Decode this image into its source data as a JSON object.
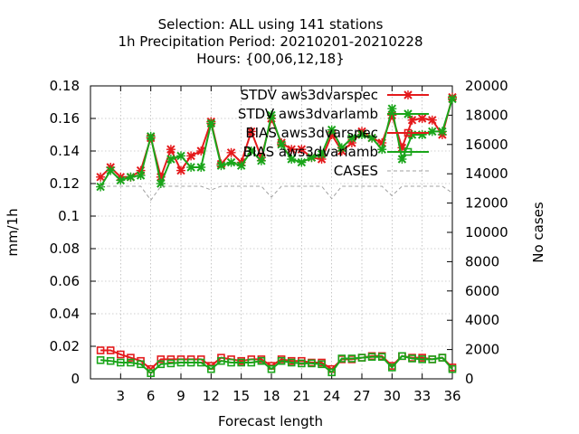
{
  "chart_data": {
    "type": "line",
    "title_lines": [
      "Selection: ALL using   141 stations",
      "1h Precipitation   Period: 20210201-20210228",
      "Hours: {00,06,12,18}"
    ],
    "xlabel": "Forecast length",
    "ylabel": "mm/1h",
    "y2label": "No cases",
    "xlim": [
      0,
      36
    ],
    "ylim": [
      0,
      0.18
    ],
    "y2lim": [
      0,
      20000
    ],
    "grid": true,
    "legend_position": "top-right",
    "x_ticks": [
      3,
      6,
      9,
      12,
      15,
      18,
      21,
      24,
      27,
      30,
      33,
      36
    ],
    "y_ticks": [
      0,
      0.02,
      0.04,
      0.06,
      0.08,
      0.1,
      0.12,
      0.14,
      0.16,
      0.18
    ],
    "y_tick_labels": [
      "0",
      "0.02",
      "0.04",
      "0.06",
      "0.08",
      "0.1",
      "0.12",
      "0.14",
      "0.16",
      "0.18"
    ],
    "y2_ticks": [
      0,
      2000,
      4000,
      6000,
      8000,
      10000,
      12000,
      14000,
      16000,
      18000,
      20000
    ],
    "x": [
      1,
      2,
      3,
      4,
      5,
      6,
      7,
      8,
      9,
      10,
      11,
      12,
      13,
      14,
      15,
      16,
      17,
      18,
      19,
      20,
      21,
      22,
      23,
      24,
      25,
      26,
      27,
      28,
      29,
      30,
      31,
      32,
      33,
      34,
      35,
      36
    ],
    "series": [
      {
        "name": "STDV aws3dvarspec",
        "color": "#e41a1c",
        "marker": "x",
        "axis": "y",
        "values": [
          0.124,
          0.13,
          0.124,
          0.124,
          0.128,
          0.148,
          0.124,
          0.141,
          0.128,
          0.137,
          0.14,
          0.158,
          0.132,
          0.139,
          0.133,
          0.152,
          0.136,
          0.16,
          0.145,
          0.141,
          0.141,
          0.136,
          0.135,
          0.15,
          0.14,
          0.145,
          0.152,
          0.148,
          0.145,
          0.162,
          0.142,
          0.159,
          0.16,
          0.159,
          0.15,
          0.173
        ]
      },
      {
        "name": "STDV aws3dvarlamb",
        "color": "#1aa51a",
        "marker": "x",
        "axis": "y",
        "values": [
          0.118,
          0.128,
          0.122,
          0.124,
          0.125,
          0.149,
          0.12,
          0.135,
          0.137,
          0.13,
          0.13,
          0.157,
          0.131,
          0.133,
          0.131,
          0.14,
          0.134,
          0.162,
          0.144,
          0.135,
          0.133,
          0.136,
          0.138,
          0.153,
          0.142,
          0.148,
          0.15,
          0.148,
          0.141,
          0.166,
          0.135,
          0.15,
          0.15,
          0.152,
          0.152,
          0.172
        ]
      },
      {
        "name": "BIAS aws3dvarspec",
        "color": "#e41a1c",
        "marker": "square",
        "axis": "y",
        "values": [
          0.0175,
          0.0175,
          0.015,
          0.013,
          0.011,
          0.006,
          0.012,
          0.012,
          0.012,
          0.012,
          0.012,
          0.008,
          0.013,
          0.012,
          0.011,
          0.012,
          0.012,
          0.008,
          0.012,
          0.011,
          0.011,
          0.01,
          0.01,
          0.006,
          0.012,
          0.012,
          0.013,
          0.014,
          0.014,
          0.008,
          0.014,
          0.013,
          0.013,
          0.012,
          0.013,
          0.007
        ]
      },
      {
        "name": "BIAS aws3dvarlamb",
        "color": "#1aa51a",
        "marker": "square",
        "axis": "y",
        "values": [
          0.0115,
          0.011,
          0.01,
          0.01,
          0.009,
          0.0035,
          0.009,
          0.0095,
          0.01,
          0.01,
          0.01,
          0.006,
          0.011,
          0.01,
          0.01,
          0.01,
          0.011,
          0.006,
          0.011,
          0.01,
          0.0095,
          0.0095,
          0.009,
          0.004,
          0.0125,
          0.0125,
          0.013,
          0.0135,
          0.0135,
          0.007,
          0.014,
          0.0125,
          0.012,
          0.012,
          0.013,
          0.006
        ]
      },
      {
        "name": "CASES",
        "color": "#a0a0a0",
        "marker": "none",
        "axis": "y2",
        "dashed": true,
        "values": [
          13150,
          13150,
          13150,
          13150,
          13150,
          12200,
          13150,
          13150,
          13150,
          13150,
          13150,
          12900,
          13150,
          13150,
          13150,
          13150,
          13150,
          12400,
          13150,
          13150,
          13150,
          13150,
          13150,
          12300,
          13150,
          13150,
          13150,
          13150,
          13150,
          12500,
          13150,
          13150,
          13150,
          13150,
          13150,
          12700
        ]
      }
    ]
  }
}
